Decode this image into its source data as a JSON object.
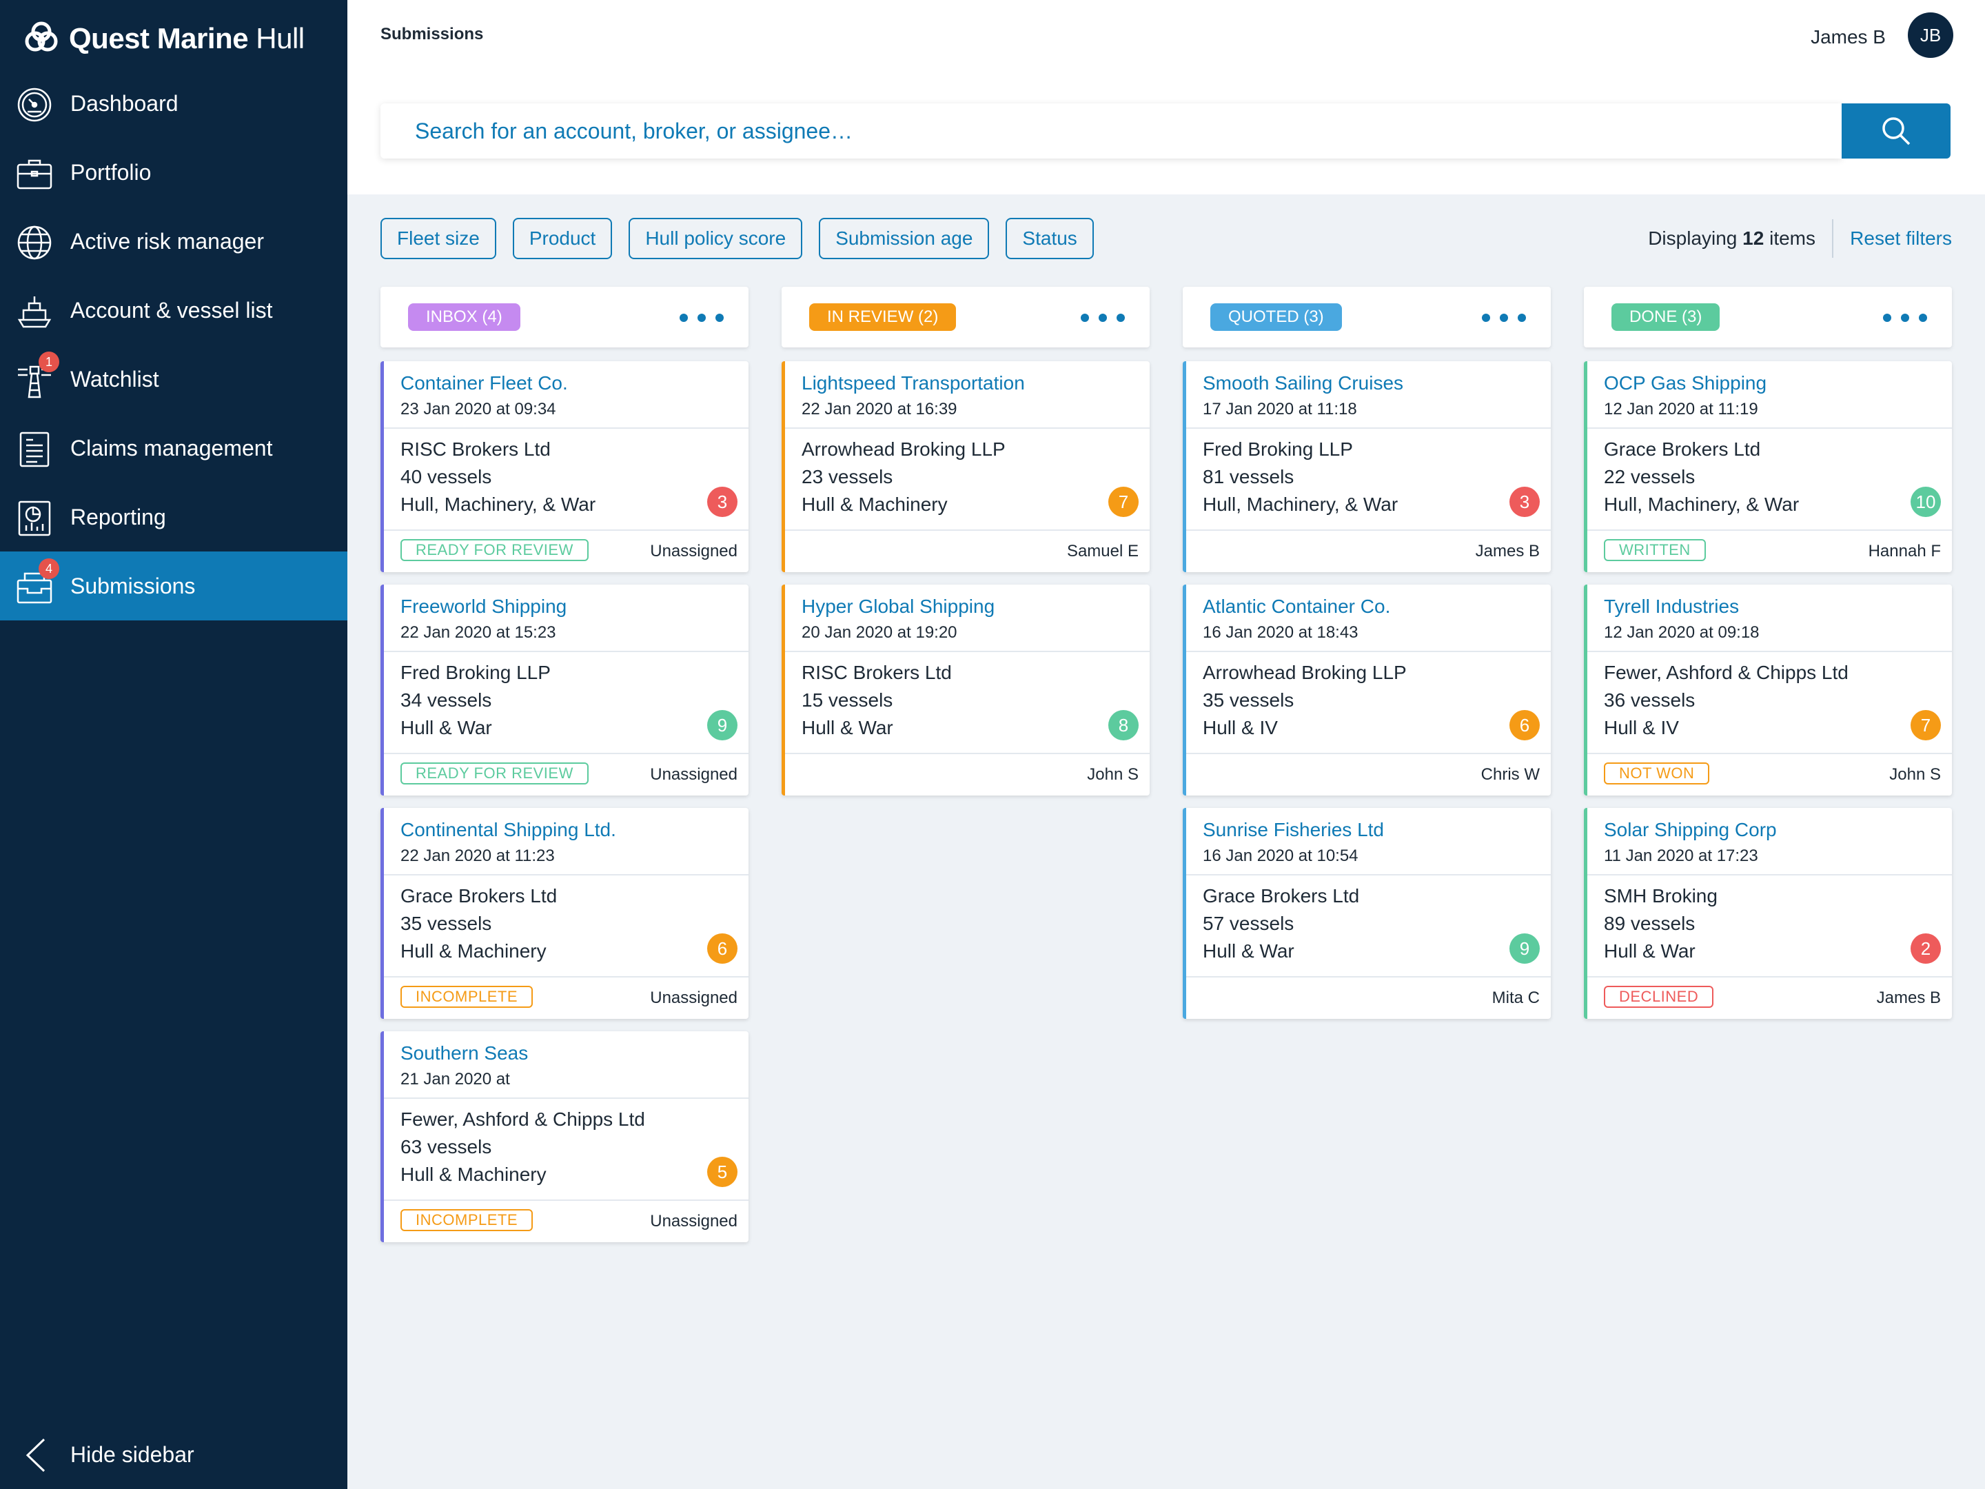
{
  "app": {
    "brand_bold": "Quest Marine",
    "brand_light": "Hull"
  },
  "sidebar": {
    "items": [
      {
        "label": "Dashboard",
        "icon": "dashboard-gauge-icon",
        "badge": ""
      },
      {
        "label": "Portfolio",
        "icon": "briefcase-icon",
        "badge": ""
      },
      {
        "label": "Active risk manager",
        "icon": "globe-icon",
        "badge": ""
      },
      {
        "label": "Account & vessel list",
        "icon": "ship-icon",
        "badge": ""
      },
      {
        "label": "Watchlist",
        "icon": "lighthouse-icon",
        "badge": "1"
      },
      {
        "label": "Claims management",
        "icon": "document-icon",
        "badge": ""
      },
      {
        "label": "Reporting",
        "icon": "report-chart-icon",
        "badge": ""
      },
      {
        "label": "Submissions",
        "icon": "inbox-tray-icon",
        "badge": "4"
      }
    ],
    "hide_label": "Hide sidebar"
  },
  "header": {
    "breadcrumb": "Submissions",
    "user_name": "James B",
    "user_initials": "JB"
  },
  "search": {
    "placeholder": "Search for an account, broker, or assignee…",
    "value": ""
  },
  "filters": [
    "Fleet size",
    "Product",
    "Hull policy score",
    "Submission age",
    "Status"
  ],
  "results": {
    "prefix": "Displaying",
    "count": "12",
    "suffix": "items",
    "reset_label": "Reset filters"
  },
  "colors": {
    "accent": "#0f7ab5",
    "sidebar_bg": "#0b2640",
    "inbox": "#c58af0",
    "in_review": "#f59b16",
    "quoted": "#4aa8e0",
    "done": "#5ccb9e",
    "score_red": "#ee5b5b",
    "score_orange": "#f59b16",
    "score_green": "#5ccb9e"
  },
  "columns": [
    {
      "label": "INBOX (4)",
      "color": "#c58af0",
      "card_border": "#6e6ee0",
      "cards": [
        {
          "title": "Container Fleet Co.",
          "date": "23 Jan 2020 at 09:34",
          "broker": "RISC Brokers Ltd",
          "vessels": "40 vessels",
          "product": "Hull, Machinery, & War",
          "score": "3",
          "score_color": "#ee5b5b",
          "status": "READY FOR REVIEW",
          "status_color": "#5ccb9e",
          "assignee": "Unassigned"
        },
        {
          "title": "Freeworld Shipping",
          "date": "22 Jan 2020 at 15:23",
          "broker": "Fred Broking LLP",
          "vessels": "34 vessels",
          "product": "Hull & War",
          "score": "9",
          "score_color": "#5ccb9e",
          "status": "READY FOR REVIEW",
          "status_color": "#5ccb9e",
          "assignee": "Unassigned"
        },
        {
          "title": "Continental Shipping Ltd.",
          "date": "22 Jan 2020 at 11:23",
          "broker": "Grace Brokers Ltd",
          "vessels": "35 vessels",
          "product": "Hull & Machinery",
          "score": "6",
          "score_color": "#f59b16",
          "status": "INCOMPLETE",
          "status_color": "#f59b16",
          "assignee": "Unassigned"
        },
        {
          "title": "Southern Seas",
          "date": "21 Jan 2020 at",
          "broker": "Fewer, Ashford & Chipps Ltd",
          "vessels": "63 vessels",
          "product": "Hull & Machinery",
          "score": "5",
          "score_color": "#f59b16",
          "status": "INCOMPLETE",
          "status_color": "#f59b16",
          "assignee": "Unassigned"
        }
      ]
    },
    {
      "label": "IN REVIEW (2)",
      "color": "#f59b16",
      "card_border": "#f59b16",
      "cards": [
        {
          "title": "Lightspeed Transportation",
          "date": "22 Jan 2020 at 16:39",
          "broker": "Arrowhead Broking LLP",
          "vessels": "23 vessels",
          "product": "Hull & Machinery",
          "score": "7",
          "score_color": "#f59b16",
          "status": "",
          "status_color": "",
          "assignee": "Samuel E"
        },
        {
          "title": "Hyper Global Shipping",
          "date": "20 Jan 2020 at 19:20",
          "broker": "RISC Brokers Ltd",
          "vessels": "15 vessels",
          "product": "Hull & War",
          "score": "8",
          "score_color": "#5ccb9e",
          "status": "",
          "status_color": "",
          "assignee": "John S"
        }
      ]
    },
    {
      "label": "QUOTED (3)",
      "color": "#4aa8e0",
      "card_border": "#4aa8e0",
      "cards": [
        {
          "title": "Smooth Sailing Cruises",
          "date": "17 Jan 2020 at 11:18",
          "broker": "Fred Broking LLP",
          "vessels": "81 vessels",
          "product": "Hull, Machinery, & War",
          "score": "3",
          "score_color": "#ee5b5b",
          "status": "",
          "status_color": "",
          "assignee": "James B"
        },
        {
          "title": "Atlantic Container Co.",
          "date": "16 Jan 2020 at 18:43",
          "broker": "Arrowhead Broking LLP",
          "vessels": "35 vessels",
          "product": "Hull & IV",
          "score": "6",
          "score_color": "#f59b16",
          "status": "",
          "status_color": "",
          "assignee": "Chris W"
        },
        {
          "title": "Sunrise Fisheries Ltd",
          "date": "16 Jan 2020 at 10:54",
          "broker": "Grace Brokers Ltd",
          "vessels": "57 vessels",
          "product": "Hull & War",
          "score": "9",
          "score_color": "#5ccb9e",
          "status": "",
          "status_color": "",
          "assignee": "Mita C"
        }
      ]
    },
    {
      "label": "DONE (3)",
      "color": "#5ccb9e",
      "card_border": "#5ccb9e",
      "cards": [
        {
          "title": "OCP Gas Shipping",
          "date": "12 Jan 2020 at 11:19",
          "broker": "Grace Brokers Ltd",
          "vessels": "22 vessels",
          "product": "Hull, Machinery, & War",
          "score": "10",
          "score_color": "#5ccb9e",
          "status": "WRITTEN",
          "status_color": "#5ccb9e",
          "assignee": "Hannah F"
        },
        {
          "title": "Tyrell Industries",
          "date": "12 Jan 2020 at 09:18",
          "broker": "Fewer, Ashford & Chipps Ltd",
          "vessels": "36 vessels",
          "product": "Hull & IV",
          "score": "7",
          "score_color": "#f59b16",
          "status": "NOT WON",
          "status_color": "#f59b16",
          "assignee": "John S"
        },
        {
          "title": "Solar Shipping Corp",
          "date": "11 Jan 2020 at 17:23",
          "broker": "SMH Broking",
          "vessels": "89 vessels",
          "product": "Hull & War",
          "score": "2",
          "score_color": "#ee5b5b",
          "status": "DECLINED",
          "status_color": "#ee5b5b",
          "assignee": "James B"
        }
      ]
    }
  ]
}
